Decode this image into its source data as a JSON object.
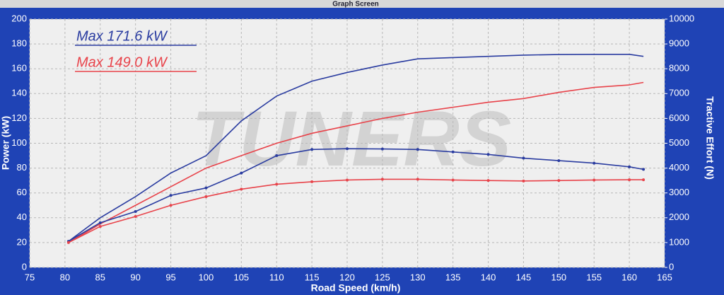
{
  "window_title": "Graph Screen",
  "chart_data": {
    "type": "line",
    "x_label": "Road Speed (km/h)",
    "y_label": "Power (kW)",
    "y2_label": "Tractive Effort (N)",
    "watermark": "TUNERS",
    "annotations": [
      {
        "text": "Max 171.6 kW",
        "color": "#2a3ca0"
      },
      {
        "text": "Max 149.0 kW",
        "color": "#e8434a"
      }
    ],
    "x": [
      80.5,
      85,
      90,
      95,
      100,
      105,
      110,
      115,
      120,
      125,
      130,
      135,
      140,
      145,
      150,
      155,
      160,
      162
    ],
    "series": [
      {
        "color": "#2a3ca0",
        "values": [
          21,
          40,
          57,
          76,
          90,
          118,
          138,
          150,
          157,
          163,
          168,
          169,
          170,
          171,
          171.5,
          171.6,
          171.6,
          170
        ]
      },
      {
        "color": "#e8434a",
        "values": [
          20,
          35,
          50,
          65,
          80,
          90,
          100,
          108,
          114,
          120,
          125,
          129,
          133,
          136,
          141,
          145,
          147,
          149
        ]
      },
      {
        "color": "#2a3ca0",
        "axis": "y2",
        "markers": true,
        "values": [
          1050,
          1800,
          2250,
          2900,
          3200,
          3800,
          4500,
          4750,
          4780,
          4770,
          4750,
          4650,
          4550,
          4400,
          4300,
          4200,
          4050,
          3950
        ]
      },
      {
        "color": "#e8434a",
        "axis": "y2",
        "markers": true,
        "values": [
          1000,
          1650,
          2050,
          2500,
          2850,
          3150,
          3350,
          3450,
          3520,
          3550,
          3550,
          3520,
          3500,
          3480,
          3500,
          3520,
          3530,
          3530
        ]
      }
    ],
    "xlim": [
      75,
      165
    ],
    "xticks": [
      75,
      80,
      85,
      90,
      95,
      100,
      105,
      110,
      115,
      120,
      125,
      130,
      135,
      140,
      145,
      150,
      155,
      160,
      165
    ],
    "ylim": [
      0,
      200
    ],
    "yticks": [
      0,
      20,
      40,
      60,
      80,
      100,
      120,
      140,
      160,
      180,
      200
    ],
    "y2lim": [
      0,
      10000
    ],
    "y2ticks": [
      0,
      1000,
      2000,
      3000,
      4000,
      5000,
      6000,
      7000,
      8000,
      9000,
      10000
    ],
    "grid": true
  }
}
